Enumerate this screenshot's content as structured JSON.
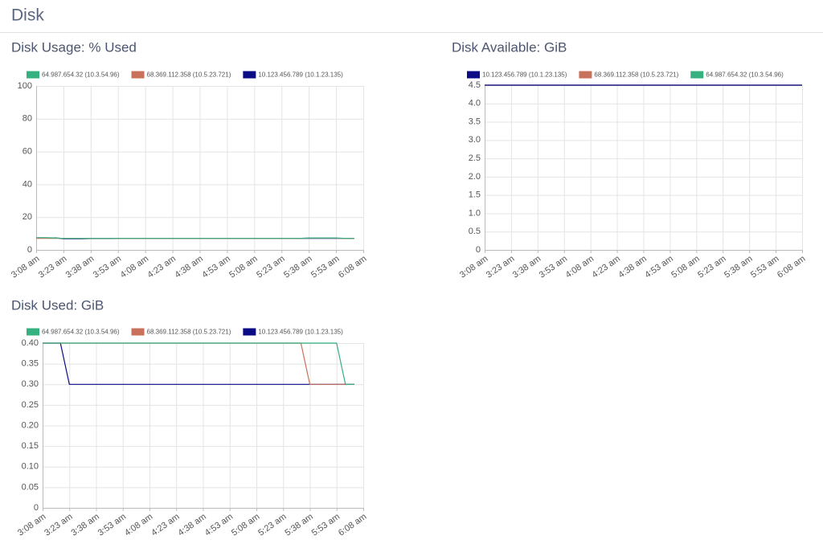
{
  "header": {
    "title": "Disk"
  },
  "chart_data": [
    {
      "type": "line",
      "title": "Disk Usage: % Used",
      "categories": [
        "3:08 am",
        null,
        null,
        "3:23 am",
        null,
        null,
        "3:38 am",
        null,
        null,
        "3:53 am",
        null,
        null,
        "4:08 am",
        null,
        null,
        "4:23 am",
        null,
        null,
        "4:38 am",
        null,
        null,
        "4:53 am",
        null,
        null,
        "5:08 am",
        null,
        null,
        "5:23 am",
        null,
        null,
        "5:38 am",
        null,
        null,
        "5:53 am",
        null,
        null,
        "6:08 am"
      ],
      "ylim": [
        0,
        100
      ],
      "yticks": [
        0,
        20,
        40,
        60,
        80,
        100
      ],
      "grid": true,
      "series": [
        {
          "name": "64.987.654.32 (10.3.54.96)",
          "color": "#35b07f",
          "values": [
            7.5,
            7.5,
            7.3,
            7.0,
            7.0,
            7.0,
            7.0,
            7.0,
            7.0,
            7.0,
            7.0,
            7.0,
            7.0,
            7.0,
            7.0,
            7.0,
            7.0,
            7.0,
            7.0,
            7.0,
            7.0,
            7.0,
            7.0,
            7.0,
            7.0,
            7.0,
            7.0,
            7.0,
            7.0,
            7.0,
            7.3,
            7.3,
            7.3,
            7.3,
            7.0,
            7.0,
            null
          ]
        },
        {
          "name": "68.369.112.358 (10.5.23.721)",
          "color": "#c8725c",
          "values": [
            7.0,
            7.0,
            7.0,
            7.0,
            7.0,
            7.0,
            7.0,
            7.0,
            7.0,
            7.0,
            7.0,
            7.0,
            7.0,
            7.0,
            7.0,
            7.0,
            7.0,
            7.0,
            7.0,
            7.0,
            7.0,
            7.0,
            7.0,
            7.0,
            7.0,
            7.0,
            7.0,
            7.0,
            7.0,
            7.0,
            7.2,
            7.2,
            7.2,
            7.2,
            6.9,
            6.9,
            null
          ]
        },
        {
          "name": "10.123.456.789 (10.1.23.135)",
          "color": "#0b0b86",
          "values": [
            null,
            null,
            7.4,
            6.8,
            6.8,
            6.8,
            6.9,
            6.9,
            6.9,
            7.0,
            7.0,
            7.0,
            7.0,
            7.0,
            7.0,
            7.0,
            7.0,
            7.0,
            7.0,
            7.0,
            7.0,
            7.0,
            7.0,
            7.0,
            7.0,
            7.0,
            7.0,
            7.0,
            7.0,
            7.0,
            7.0,
            7.0,
            7.0,
            7.0,
            7.0,
            7.0,
            null
          ]
        }
      ]
    },
    {
      "type": "line",
      "title": "Disk Available: GiB",
      "categories": [
        "3:08 am",
        null,
        null,
        "3:23 am",
        null,
        null,
        "3:38 am",
        null,
        null,
        "3:53 am",
        null,
        null,
        "4:08 am",
        null,
        null,
        "4:23 am",
        null,
        null,
        "4:38 am",
        null,
        null,
        "4:53 am",
        null,
        null,
        "5:08 am",
        null,
        null,
        "5:23 am",
        null,
        null,
        "5:38 am",
        null,
        null,
        "5:53 am",
        null,
        null,
        "6:08 am"
      ],
      "ylim": [
        0,
        4.5
      ],
      "yticks": [
        0,
        0.5,
        {
          "value": 1,
          "label": "1.0"
        },
        1.5,
        {
          "value": 2,
          "label": "2.0"
        },
        2.5,
        {
          "value": 3,
          "label": "3.0"
        },
        3.5,
        {
          "value": 4,
          "label": "4.0"
        },
        4.5
      ],
      "grid": true,
      "series": [
        {
          "name": "10.123.456.789 (10.1.23.135)",
          "color": "#0b0b86",
          "values": [
            4.5,
            4.5,
            4.5,
            4.5,
            4.5,
            4.5,
            4.5,
            4.5,
            4.5,
            4.5,
            4.5,
            4.5,
            4.5,
            4.5,
            4.5,
            4.5,
            4.5,
            4.5,
            4.5,
            4.5,
            4.5,
            4.5,
            4.5,
            4.5,
            4.5,
            4.5,
            4.5,
            4.5,
            4.5,
            4.5,
            4.5,
            4.5,
            4.5,
            4.5,
            4.5,
            4.5,
            4.5
          ]
        },
        {
          "name": "68.369.112.358 (10.5.23.721)",
          "color": "#c8725c",
          "values": [
            4.5,
            4.5,
            4.5,
            4.5,
            4.5,
            4.5,
            4.5,
            4.5,
            4.5,
            4.5,
            4.5,
            4.5,
            4.5,
            4.5,
            4.5,
            4.5,
            4.5,
            4.5,
            4.5,
            4.5,
            4.5,
            4.5,
            4.5,
            4.5,
            4.5,
            4.5,
            4.5,
            4.5,
            4.5,
            4.5,
            4.5,
            4.5,
            4.5,
            4.5,
            4.5,
            4.5,
            4.5
          ]
        },
        {
          "name": "64.987.654.32 (10.3.54.96)",
          "color": "#35b07f",
          "values": [
            4.5,
            4.5,
            4.5,
            4.5,
            4.5,
            4.5,
            4.5,
            4.5,
            4.5,
            4.5,
            4.5,
            4.5,
            4.5,
            4.5,
            4.5,
            4.5,
            4.5,
            4.5,
            4.5,
            4.5,
            4.5,
            4.5,
            4.5,
            4.5,
            4.5,
            4.5,
            4.5,
            4.5,
            4.5,
            4.5,
            4.5,
            4.5,
            4.5,
            4.5,
            4.5,
            4.5,
            4.5
          ]
        }
      ]
    },
    {
      "type": "line",
      "title": "Disk Used: GiB",
      "categories": [
        "3:08 am",
        null,
        null,
        "3:23 am",
        null,
        null,
        "3:38 am",
        null,
        null,
        "3:53 am",
        null,
        null,
        "4:08 am",
        null,
        null,
        "4:23 am",
        null,
        null,
        "4:38 am",
        null,
        null,
        "4:53 am",
        null,
        null,
        "5:08 am",
        null,
        null,
        "5:23 am",
        null,
        null,
        "5:38 am",
        null,
        null,
        "5:53 am",
        null,
        null,
        "6:08 am"
      ],
      "ylim": [
        0,
        0.4
      ],
      "yticks": [
        0,
        0.05,
        {
          "value": 0.1,
          "label": "0.10"
        },
        0.15,
        {
          "value": 0.2,
          "label": "0.20"
        },
        0.25,
        {
          "value": 0.3,
          "label": "0.30"
        },
        0.35,
        {
          "value": 0.4,
          "label": "0.40"
        }
      ],
      "grid": true,
      "series": [
        {
          "name": "64.987.654.32 (10.3.54.96)",
          "color": "#35b07f",
          "values": [
            0.4,
            0.4,
            0.4,
            0.4,
            0.4,
            0.4,
            0.4,
            0.4,
            0.4,
            0.4,
            0.4,
            0.4,
            0.4,
            0.4,
            0.4,
            0.4,
            0.4,
            0.4,
            0.4,
            0.4,
            0.4,
            0.4,
            0.4,
            0.4,
            0.4,
            0.4,
            0.4,
            0.4,
            0.4,
            0.4,
            0.4,
            0.4,
            0.4,
            0.4,
            0.3,
            0.3,
            null
          ]
        },
        {
          "name": "68.369.112.358 (10.5.23.721)",
          "color": "#c8725c",
          "values": [
            0.4,
            0.4,
            0.4,
            0.4,
            0.4,
            0.4,
            0.4,
            0.4,
            0.4,
            0.4,
            0.4,
            0.4,
            0.4,
            0.4,
            0.4,
            0.4,
            0.4,
            0.4,
            0.4,
            0.4,
            0.4,
            0.4,
            0.4,
            0.4,
            0.4,
            0.4,
            0.4,
            0.4,
            0.4,
            0.4,
            0.3,
            0.3,
            0.3,
            0.3,
            0.3,
            0.3,
            null
          ]
        },
        {
          "name": "10.123.456.789 (10.1.23.135)",
          "color": "#0b0b86",
          "values": [
            0.4,
            0.4,
            0.4,
            0.3,
            0.3,
            0.3,
            0.3,
            0.3,
            0.3,
            0.3,
            0.3,
            0.3,
            0.3,
            0.3,
            0.3,
            0.3,
            0.3,
            0.3,
            0.3,
            0.3,
            0.3,
            0.3,
            0.3,
            0.3,
            0.3,
            0.3,
            0.3,
            0.3,
            0.3,
            0.3,
            0.3,
            0.3,
            0.3,
            0.3,
            0.3,
            0.3,
            null
          ]
        }
      ]
    }
  ]
}
